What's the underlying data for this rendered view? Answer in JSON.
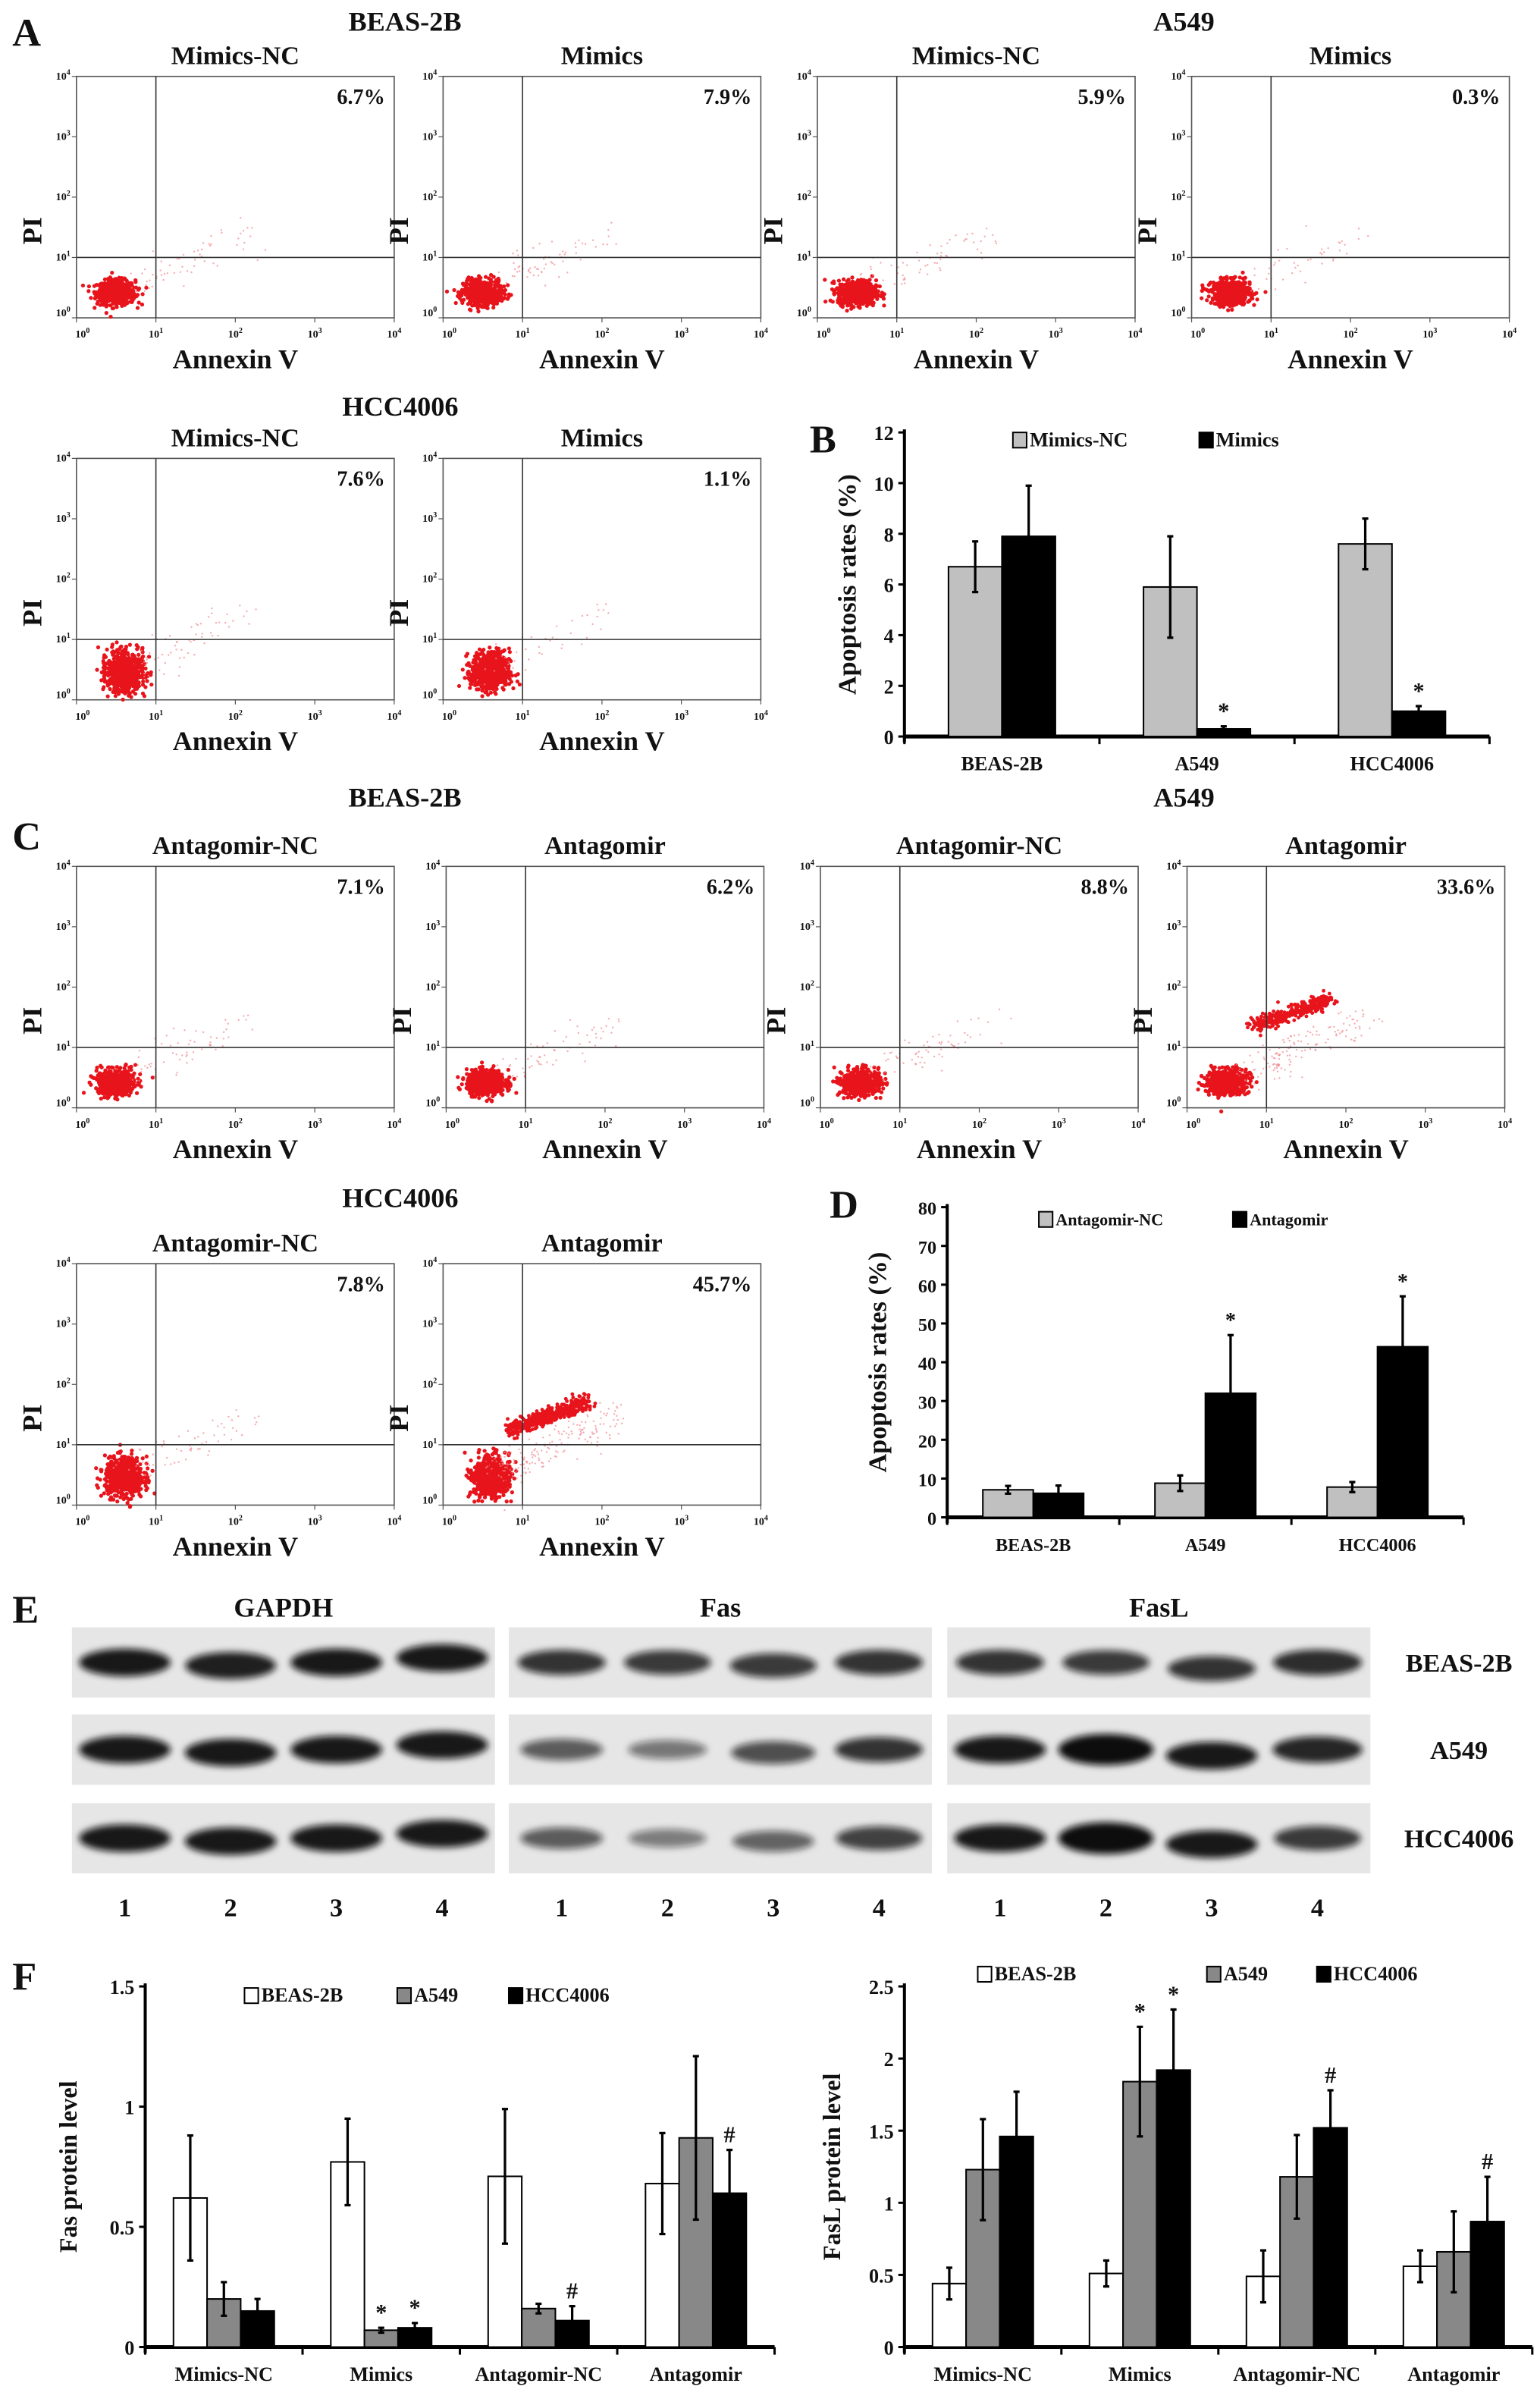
{
  "flow": {
    "x_label": "Annexin V",
    "y_label": "PI",
    "tick_base": "10",
    "tick_exponents": [
      "0",
      "1",
      "2",
      "3",
      "4"
    ],
    "dot_color": "#e8141c"
  },
  "panel_A": {
    "letter": "A",
    "groups": [
      {
        "cell_line": "BEAS-2B",
        "plots": [
          {
            "title": "Mimics-NC",
            "apoptosis": "6.7%"
          },
          {
            "title": "Mimics",
            "apoptosis": "7.9%"
          }
        ]
      },
      {
        "cell_line": "A549",
        "plots": [
          {
            "title": "Mimics-NC",
            "apoptosis": "5.9%"
          },
          {
            "title": "Mimics",
            "apoptosis": "0.3%"
          }
        ]
      },
      {
        "cell_line": "HCC4006",
        "plots": [
          {
            "title": "Mimics-NC",
            "apoptosis": "7.6%"
          },
          {
            "title": "Mimics",
            "apoptosis": "1.1%"
          }
        ]
      }
    ]
  },
  "panel_C": {
    "letter": "C",
    "groups": [
      {
        "cell_line": "BEAS-2B",
        "plots": [
          {
            "title": "Antagomir-NC",
            "apoptosis": "7.1%"
          },
          {
            "title": "Antagomir",
            "apoptosis": "6.2%"
          }
        ]
      },
      {
        "cell_line": "A549",
        "plots": [
          {
            "title": "Antagomir-NC",
            "apoptosis": "8.8%"
          },
          {
            "title": "Antagomir",
            "apoptosis": "33.6%"
          }
        ]
      },
      {
        "cell_line": "HCC4006",
        "plots": [
          {
            "title": "Antagomir-NC",
            "apoptosis": "7.8%"
          },
          {
            "title": "Antagomir",
            "apoptosis": "45.7%"
          }
        ]
      }
    ]
  },
  "panel_E": {
    "letter": "E",
    "blots": [
      "GAPDH",
      "Fas",
      "FasL"
    ],
    "cell_lines": [
      "BEAS-2B",
      "A549",
      "HCC4006"
    ],
    "lanes": [
      "1",
      "2",
      "3",
      "4"
    ]
  },
  "panel_F": {
    "letter": "F"
  },
  "chart_data": [
    {
      "type": "bar",
      "letter": "B",
      "ylabel": "Apoptosis rates (%)",
      "ylim": [
        0,
        12
      ],
      "yticks": [
        0,
        2,
        4,
        6,
        8,
        10,
        12
      ],
      "categories": [
        "BEAS-2B",
        "A549",
        "HCC4006"
      ],
      "series": [
        {
          "name": "Mimics-NC",
          "color": "#c0c0c0",
          "values": [
            6.7,
            5.9,
            7.6
          ],
          "errors": [
            1.0,
            2.0,
            1.0
          ]
        },
        {
          "name": "Mimics",
          "color": "#000000",
          "values": [
            7.9,
            0.3,
            1.0
          ],
          "errors": [
            2.0,
            0.1,
            0.2
          ]
        }
      ],
      "annotations": [
        {
          "series": 1,
          "category": 1,
          "text": "*"
        },
        {
          "series": 1,
          "category": 2,
          "text": "*"
        }
      ],
      "legend": "top"
    },
    {
      "type": "bar",
      "letter": "D",
      "ylabel": "Apoptosis rates (%)",
      "ylim": [
        0,
        80
      ],
      "yticks": [
        0,
        10,
        20,
        30,
        40,
        50,
        60,
        70,
        80
      ],
      "categories": [
        "BEAS-2B",
        "A549",
        "HCC4006"
      ],
      "series": [
        {
          "name": "Antagomir-NC",
          "color": "#c0c0c0",
          "values": [
            7.1,
            8.8,
            7.8
          ],
          "errors": [
            1.0,
            2.0,
            1.3
          ]
        },
        {
          "name": "Antagomir",
          "color": "#000000",
          "values": [
            6.2,
            32.0,
            44.0
          ],
          "errors": [
            2.0,
            15.0,
            13.0
          ]
        }
      ],
      "annotations": [
        {
          "series": 1,
          "category": 1,
          "text": "*"
        },
        {
          "series": 1,
          "category": 2,
          "text": "*"
        }
      ],
      "legend": "top"
    },
    {
      "type": "bar",
      "ylabel": "Fas protein level",
      "ylim": [
        0,
        1.5
      ],
      "yticks": [
        0,
        0.5,
        1,
        1.5
      ],
      "categories": [
        "Mimics-NC",
        "Mimics",
        "Antagomir-NC",
        "Antagomir"
      ],
      "series": [
        {
          "name": "BEAS-2B",
          "color": "#ffffff",
          "values": [
            0.62,
            0.77,
            0.71,
            0.68
          ],
          "errors": [
            0.26,
            0.18,
            0.28,
            0.21
          ]
        },
        {
          "name": "A549",
          "color": "#888888",
          "values": [
            0.2,
            0.07,
            0.16,
            0.87
          ],
          "errors": [
            0.07,
            0.01,
            0.02,
            0.34
          ]
        },
        {
          "name": "HCC4006",
          "color": "#000000",
          "values": [
            0.15,
            0.08,
            0.11,
            0.64
          ],
          "errors": [
            0.05,
            0.02,
            0.06,
            0.18
          ]
        }
      ],
      "annotations": [
        {
          "series": 1,
          "category": 1,
          "text": "*"
        },
        {
          "series": 2,
          "category": 1,
          "text": "*"
        },
        {
          "series": 2,
          "category": 2,
          "text": "#"
        },
        {
          "series": 2,
          "category": 3,
          "text": "#"
        }
      ],
      "legend": "top"
    },
    {
      "type": "bar",
      "ylabel": "FasL protein level",
      "ylim": [
        0,
        2.5
      ],
      "yticks": [
        0,
        0.5,
        1,
        1.5,
        2,
        2.5
      ],
      "categories": [
        "Mimics-NC",
        "Mimics",
        "Antagomir-NC",
        "Antagomir"
      ],
      "series": [
        {
          "name": "BEAS-2B",
          "color": "#ffffff",
          "values": [
            0.44,
            0.51,
            0.49,
            0.56
          ],
          "errors": [
            0.11,
            0.09,
            0.18,
            0.11
          ]
        },
        {
          "name": "A549",
          "color": "#888888",
          "values": [
            1.23,
            1.84,
            1.18,
            0.66
          ],
          "errors": [
            0.35,
            0.38,
            0.29,
            0.28
          ]
        },
        {
          "name": "HCC4006",
          "color": "#000000",
          "values": [
            1.46,
            1.92,
            1.52,
            0.87
          ],
          "errors": [
            0.31,
            0.42,
            0.26,
            0.31
          ]
        }
      ],
      "annotations": [
        {
          "series": 1,
          "category": 1,
          "text": "*"
        },
        {
          "series": 2,
          "category": 1,
          "text": "*"
        },
        {
          "series": 2,
          "category": 2,
          "text": "#"
        },
        {
          "series": 2,
          "category": 3,
          "text": "#"
        }
      ],
      "legend": "top"
    }
  ]
}
